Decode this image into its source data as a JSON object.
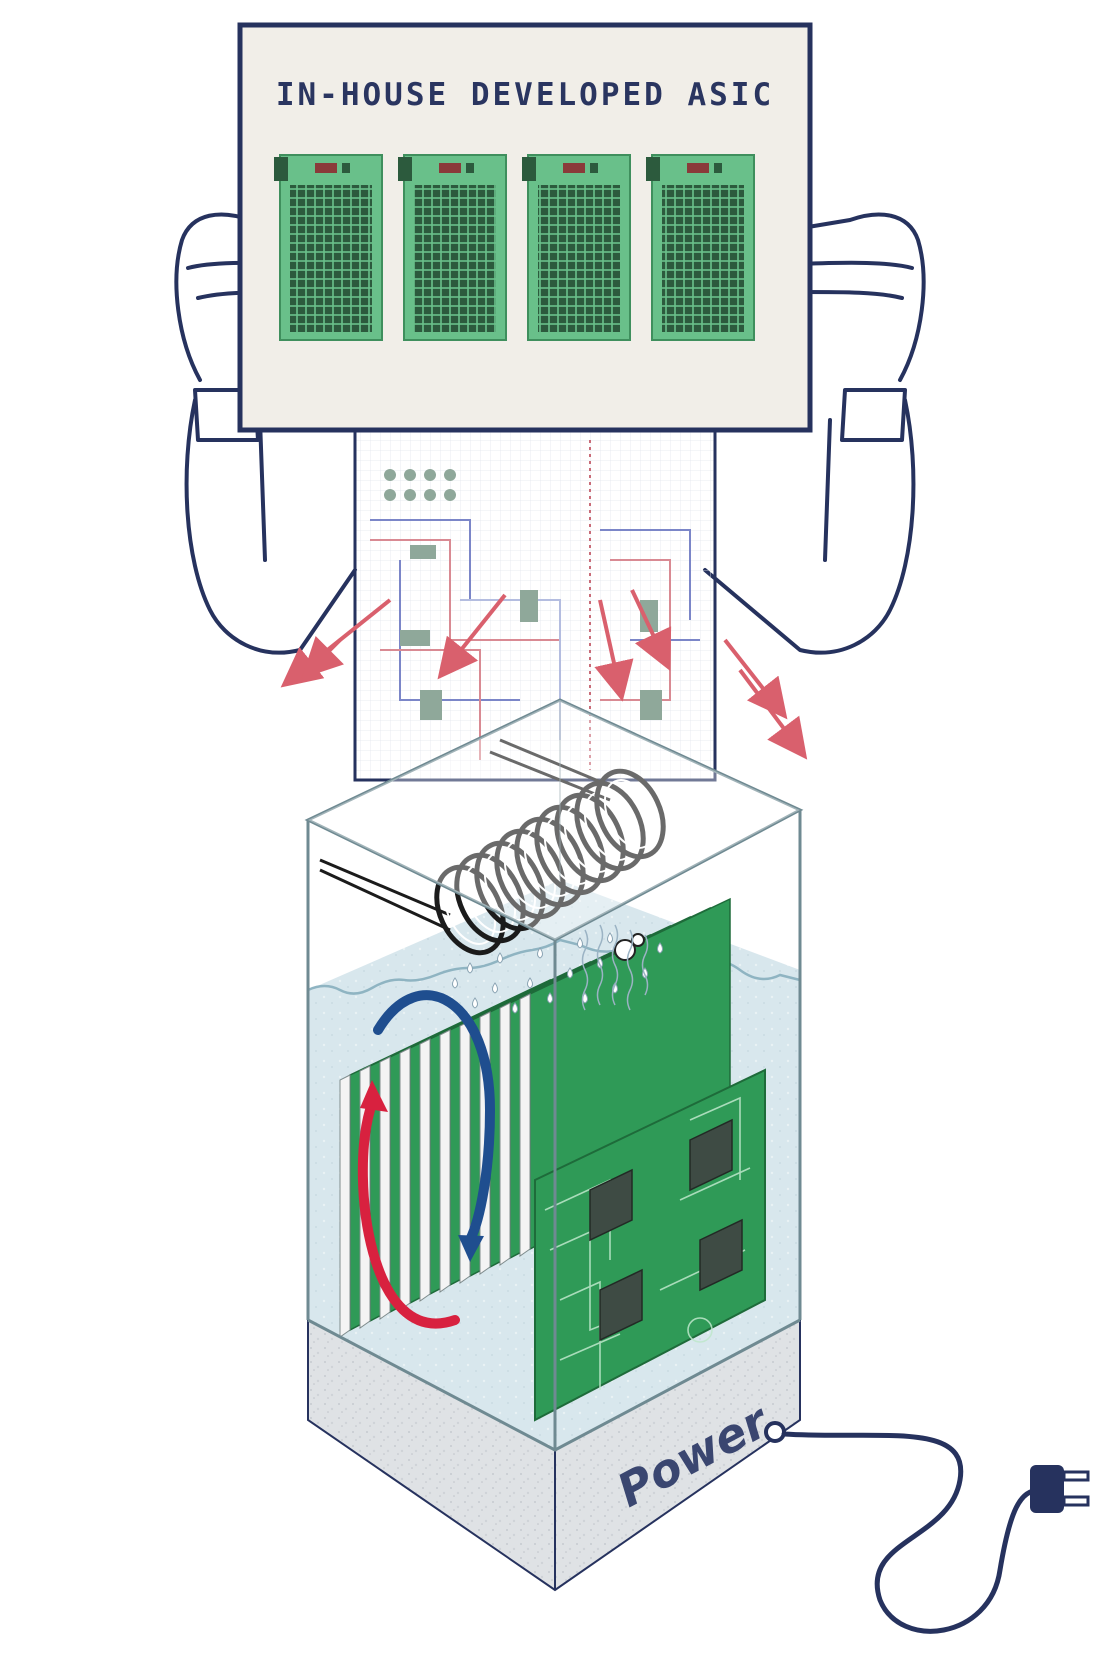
{
  "sign": {
    "title": "IN-HOUSE DEVELOPED ASIC",
    "board_count": 4
  },
  "tank": {
    "base_label": "Power",
    "blade_count": 10,
    "chip_count": 4
  },
  "colors": {
    "outline": "#26325e",
    "sign_paper": "#f1eee8",
    "pcb_green": "#2f9a57",
    "pcb_green_light": "#69c08a",
    "chip": "#3e4b44",
    "heat_arrow": "#d9606d",
    "coolant": "#d6e6ec",
    "base": "#dcdfe2",
    "flow_hot": "#d8213f",
    "flow_cold": "#1f4e8f"
  },
  "icons": {
    "cooling_coil": "coil-icon",
    "plug": "plug-icon",
    "flow": "circulation-arrow-icon"
  }
}
